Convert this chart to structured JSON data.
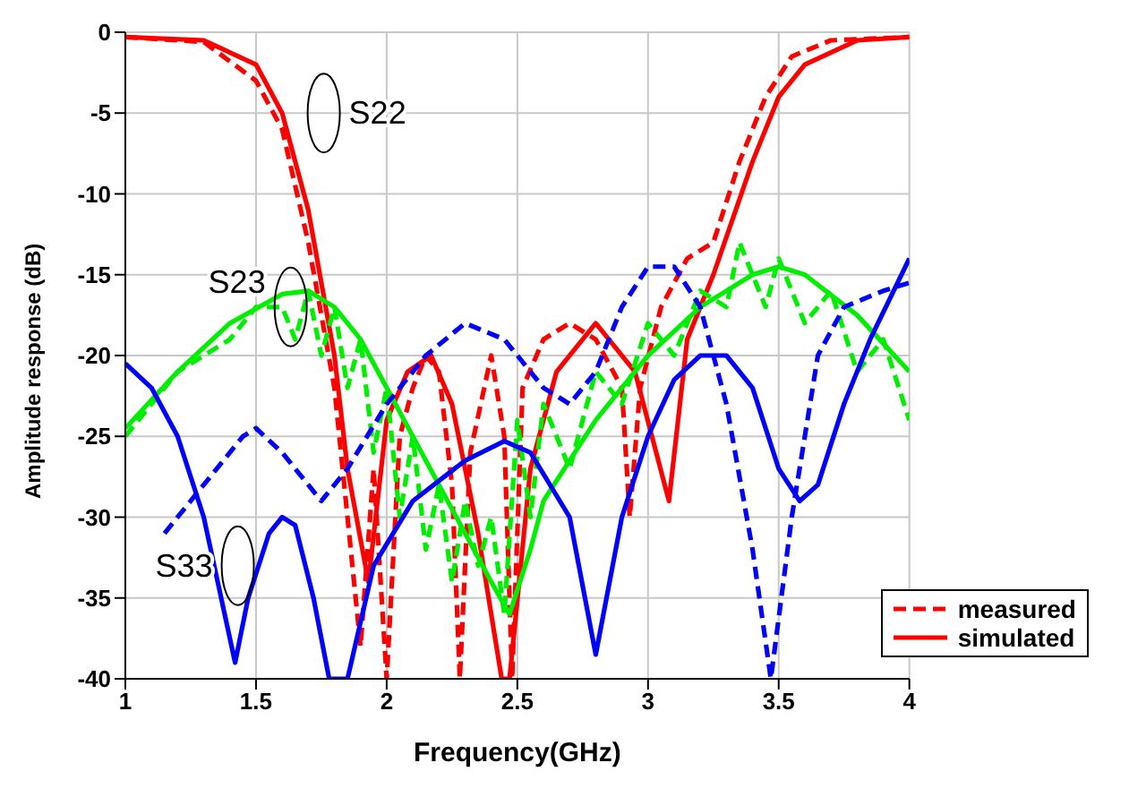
{
  "chart_data": {
    "type": "line",
    "xlabel": "Frequency(GHz)",
    "ylabel": "Amplitude response (dB)",
    "xlim": [
      1,
      4
    ],
    "ylim": [
      -40,
      0
    ],
    "xticks": [
      1,
      1.5,
      2,
      2.5,
      3,
      3.5,
      4
    ],
    "yticks": [
      0,
      -5,
      -10,
      -15,
      -20,
      -25,
      -30,
      -35,
      -40
    ],
    "grid": true,
    "legend": "bottom right",
    "marker": "none",
    "series": [
      {
        "name": "measured",
        "color": "#ff0000",
        "line_style": "dashed",
        "x": [
          1,
          1.3,
          1.5,
          1.6,
          1.7,
          1.8,
          1.85,
          1.9,
          1.95,
          2,
          2.05,
          2.1,
          2.15,
          2.2,
          2.25,
          2.28,
          2.32,
          2.4,
          2.45,
          2.48,
          2.52,
          2.6,
          2.7,
          2.8,
          2.9,
          2.93,
          2.97,
          3.05,
          3.15,
          3.25,
          3.35,
          3.45,
          3.55,
          3.7,
          4
        ],
        "values": [
          -0.3,
          -0.6,
          -3,
          -6,
          -13,
          -22,
          -30,
          -38,
          -27,
          -40,
          -25,
          -22,
          -20,
          -21,
          -28,
          -40,
          -26,
          -20,
          -25,
          -40,
          -22,
          -19,
          -18,
          -19,
          -22,
          -30,
          -22,
          -17,
          -14,
          -13,
          -8,
          -4,
          -1.5,
          -0.5,
          -0.3
        ]
      },
      {
        "name": "simulated",
        "color": "#ff0000",
        "line_style": "solid",
        "x": [
          1,
          1.3,
          1.5,
          1.6,
          1.7,
          1.8,
          1.85,
          1.93,
          2,
          2.08,
          2.17,
          2.25,
          2.35,
          2.44,
          2.47,
          2.55,
          2.65,
          2.8,
          2.95,
          3.08,
          3.15,
          3.25,
          3.4,
          3.5,
          3.6,
          3.8,
          4
        ],
        "values": [
          -0.3,
          -0.5,
          -2,
          -5,
          -11,
          -20,
          -27,
          -34,
          -24,
          -21,
          -20,
          -23,
          -31,
          -40,
          -40,
          -27,
          -21,
          -18,
          -21,
          -29,
          -19,
          -15,
          -8,
          -4,
          -2,
          -0.5,
          -0.3
        ]
      },
      {
        "color": "#00ee00",
        "line_style": "dashed",
        "x": [
          1,
          1.2,
          1.4,
          1.5,
          1.6,
          1.65,
          1.7,
          1.75,
          1.8,
          1.85,
          1.9,
          1.95,
          2,
          2.05,
          2.1,
          2.15,
          2.2,
          2.25,
          2.3,
          2.35,
          2.4,
          2.45,
          2.5,
          2.55,
          2.6,
          2.7,
          2.8,
          2.9,
          3,
          3.1,
          3.2,
          3.3,
          3.35,
          3.45,
          3.5,
          3.6,
          3.7,
          3.8,
          3.9,
          4
        ],
        "values": [
          -25,
          -21,
          -19,
          -17,
          -17,
          -19,
          -16,
          -20,
          -17,
          -22,
          -19,
          -26,
          -22,
          -30,
          -25,
          -32,
          -28,
          -34,
          -29,
          -33,
          -30,
          -36,
          -24,
          -30,
          -23,
          -27,
          -21,
          -23,
          -18,
          -20,
          -16,
          -17,
          -13,
          -17,
          -14,
          -18,
          -16,
          -21,
          -19,
          -24
        ]
      },
      {
        "color": "#00ee00",
        "line_style": "solid",
        "x": [
          1,
          1.2,
          1.4,
          1.6,
          1.7,
          1.8,
          1.9,
          2,
          2.1,
          2.2,
          2.3,
          2.4,
          2.47,
          2.55,
          2.6,
          2.8,
          3,
          3.2,
          3.4,
          3.5,
          3.6,
          3.8,
          4
        ],
        "values": [
          -24.5,
          -21,
          -18,
          -16.2,
          -16,
          -17,
          -19,
          -22,
          -25,
          -28,
          -31,
          -34,
          -36,
          -32,
          -29,
          -24,
          -20,
          -17,
          -15,
          -14.5,
          -15,
          -17.5,
          -21
        ]
      },
      {
        "color": "#0000ff",
        "line_style": "dashed",
        "x": [
          1.15,
          1.25,
          1.35,
          1.45,
          1.5,
          1.6,
          1.75,
          1.85,
          2,
          2.15,
          2.3,
          2.45,
          2.6,
          2.7,
          2.8,
          2.9,
          3,
          3.1,
          3.2,
          3.3,
          3.4,
          3.47,
          3.55,
          3.65,
          3.75,
          3.9,
          4
        ],
        "values": [
          -31,
          -29,
          -27,
          -25,
          -24.5,
          -26,
          -29,
          -27,
          -23,
          -20,
          -18,
          -19,
          -22,
          -23,
          -21,
          -17,
          -14.5,
          -14.5,
          -17,
          -23,
          -32,
          -40,
          -30,
          -20,
          -17,
          -16,
          -15.5
        ]
      },
      {
        "color": "#0000ff",
        "line_style": "solid",
        "x": [
          1,
          1.1,
          1.2,
          1.3,
          1.38,
          1.42,
          1.47,
          1.55,
          1.6,
          1.65,
          1.72,
          1.78,
          1.85,
          1.95,
          2.1,
          2.3,
          2.45,
          2.55,
          2.7,
          2.8,
          2.9,
          3,
          3.1,
          3.2,
          3.3,
          3.4,
          3.5,
          3.58,
          3.65,
          3.75,
          3.85,
          4
        ],
        "values": [
          -20.5,
          -22,
          -25,
          -30,
          -36,
          -39,
          -35,
          -31,
          -30,
          -30.5,
          -35,
          -40,
          -40,
          -33,
          -29,
          -26.5,
          -25.3,
          -26,
          -30,
          -38.5,
          -30,
          -25,
          -21.5,
          -20,
          -20,
          -22,
          -27,
          -29,
          -28,
          -23,
          -19,
          -14
        ]
      }
    ],
    "annotations": [
      {
        "text": "S22",
        "x": 1.6,
        "y": -5
      },
      {
        "text": "S23",
        "x": 1.5,
        "y": -17
      },
      {
        "text": "S33",
        "x": 1.34,
        "y": -33
      }
    ]
  }
}
